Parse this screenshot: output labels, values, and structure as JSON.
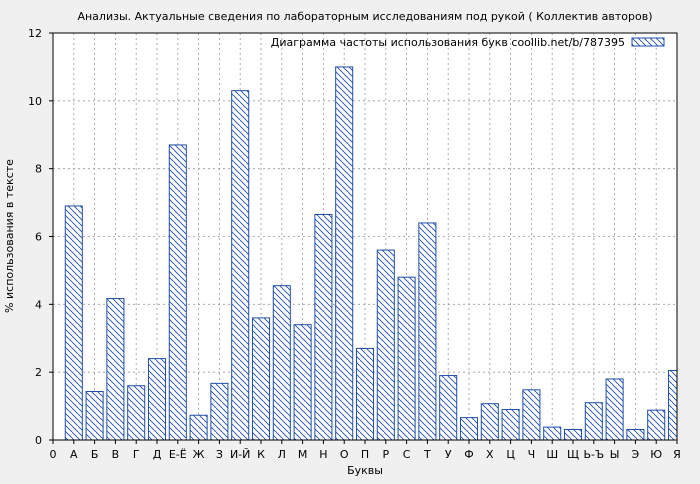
{
  "chart_data": {
    "type": "bar",
    "title": "Анализы. Актуальные сведения по лабораторным исследованиям под рукой ( Коллектив авторов)",
    "xlabel": "Буквы",
    "ylabel": "% использования в тексте",
    "ylim": [
      0,
      12
    ],
    "yticks": [
      0,
      2,
      4,
      6,
      8,
      10,
      12
    ],
    "grid": true,
    "legend_position": "top-right",
    "x_start_label": "0",
    "categories": [
      "А",
      "Б",
      "В",
      "Г",
      "Д",
      "Е-Ё",
      "Ж",
      "З",
      "И-Й",
      "К",
      "Л",
      "М",
      "Н",
      "О",
      "П",
      "Р",
      "С",
      "Т",
      "У",
      "Ф",
      "Х",
      "Ц",
      "Ч",
      "Ш",
      "Щ",
      "Ь-Ъ",
      "Ы",
      "Э",
      "Ю",
      "Я"
    ],
    "series": [
      {
        "name": "Диаграмма частоты использования букв coollib.net/b/787395",
        "color": "#1f4fa8",
        "values": [
          6.9,
          1.43,
          4.17,
          1.6,
          2.4,
          8.7,
          0.73,
          1.67,
          10.3,
          3.6,
          4.55,
          3.4,
          6.65,
          11.0,
          2.7,
          5.6,
          4.8,
          6.4,
          1.9,
          0.66,
          1.07,
          0.9,
          1.48,
          0.38,
          0.31,
          1.1,
          1.8,
          0.31,
          0.88,
          2.05
        ]
      }
    ]
  }
}
